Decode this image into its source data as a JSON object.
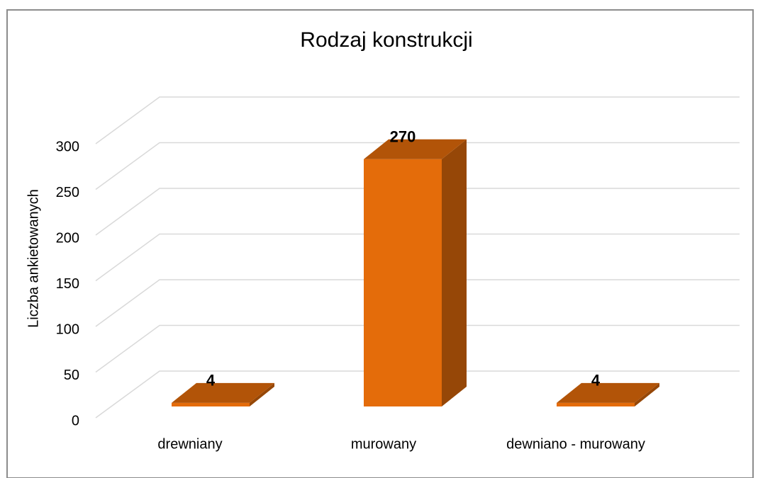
{
  "chart_data": {
    "type": "bar3d",
    "title": "Rodzaj konstrukcji",
    "y_label": "Liczba ankietowanych",
    "categories": [
      "drewniany",
      "murowany",
      "dewniano - murowany"
    ],
    "values": [
      4,
      270,
      4
    ],
    "color": "#e46c0a",
    "ylim": [
      0,
      300
    ],
    "yticks": [
      0,
      50,
      100,
      150,
      200,
      250,
      300
    ],
    "grid": true
  }
}
